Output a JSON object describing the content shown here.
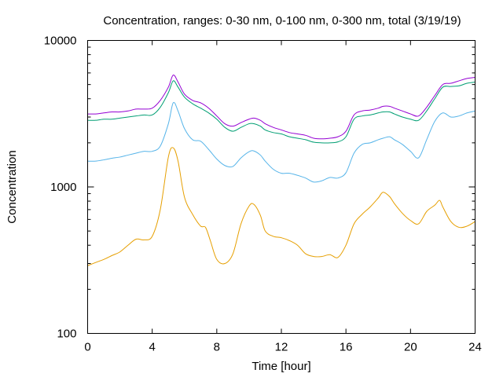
{
  "chart_data": {
    "type": "line",
    "title": "Concentration, ranges: 0-30 nm, 0-100 nm, 0-300 nm, total (3/19/19)",
    "xlabel": "Time [hour]",
    "ylabel": "Concentration",
    "xlim": [
      0,
      24
    ],
    "ylim": [
      100,
      10000
    ],
    "yscale": "log",
    "grid": false,
    "legend": "none",
    "x_ticks": [
      0,
      4,
      8,
      12,
      16,
      20,
      24
    ],
    "y_ticks": [
      100,
      1000,
      10000
    ],
    "y_minor_ticks": [
      200,
      300,
      400,
      500,
      600,
      700,
      800,
      900,
      2000,
      3000,
      4000,
      5000,
      6000,
      7000,
      8000,
      9000
    ],
    "series": [
      {
        "color": "#e69f00",
        "x": [
          0,
          0.5,
          1,
          1.5,
          2,
          2.5,
          3,
          3.5,
          4,
          4.5,
          5,
          5.3,
          5.6,
          6,
          6.5,
          7,
          7.3,
          7.6,
          8,
          8.5,
          9,
          9.5,
          10,
          10.3,
          10.7,
          11,
          11.5,
          12,
          12.5,
          13,
          13.5,
          14,
          14.5,
          15,
          15.5,
          16,
          16.5,
          17,
          17.5,
          18,
          18.3,
          18.7,
          19,
          19.5,
          20,
          20.5,
          21,
          21.5,
          21.8,
          22,
          22.5,
          23,
          23.5,
          24
        ],
        "y": [
          290,
          305,
          320,
          340,
          360,
          400,
          440,
          435,
          460,
          700,
          1600,
          1850,
          1500,
          850,
          650,
          540,
          530,
          430,
          320,
          300,
          350,
          560,
          740,
          760,
          640,
          500,
          460,
          450,
          430,
          400,
          350,
          335,
          335,
          345,
          330,
          400,
          560,
          650,
          730,
          840,
          920,
          860,
          770,
          660,
          590,
          560,
          680,
          750,
          810,
          730,
          580,
          530,
          540,
          580
        ]
      },
      {
        "color": "#56b4e9",
        "x": [
          0,
          0.5,
          1,
          1.5,
          2,
          2.5,
          3,
          3.5,
          4,
          4.5,
          5,
          5.3,
          5.6,
          6,
          6.5,
          7,
          7.5,
          8,
          8.5,
          9,
          9.5,
          10,
          10.3,
          10.7,
          11,
          11.5,
          12,
          12.5,
          13,
          13.5,
          14,
          14.5,
          15,
          15.5,
          16,
          16.5,
          17,
          17.5,
          18,
          18.3,
          18.7,
          19,
          19.5,
          20,
          20.5,
          21,
          21.5,
          22,
          22.5,
          23,
          23.5,
          24
        ],
        "y": [
          1500,
          1500,
          1530,
          1570,
          1600,
          1650,
          1700,
          1750,
          1750,
          1900,
          2700,
          3750,
          3300,
          2500,
          2100,
          2050,
          1800,
          1550,
          1400,
          1380,
          1580,
          1740,
          1760,
          1650,
          1500,
          1320,
          1240,
          1240,
          1200,
          1150,
          1080,
          1100,
          1160,
          1150,
          1250,
          1700,
          1950,
          2000,
          2100,
          2150,
          2200,
          2100,
          1950,
          1750,
          1580,
          2100,
          2800,
          3200,
          3000,
          3050,
          3200,
          3300
        ]
      },
      {
        "color": "#009e73",
        "x": [
          0,
          0.5,
          1,
          1.5,
          2,
          2.5,
          3,
          3.5,
          4,
          4.5,
          5,
          5.3,
          5.6,
          6,
          6.5,
          7,
          7.5,
          8,
          8.5,
          9,
          9.5,
          10,
          10.3,
          10.7,
          11,
          11.5,
          12,
          12.5,
          13,
          13.5,
          14,
          14.5,
          15,
          15.5,
          16,
          16.5,
          17,
          17.5,
          18,
          18.3,
          18.7,
          19,
          19.5,
          20,
          20.5,
          21,
          21.5,
          22,
          22.5,
          23,
          23.5,
          24
        ],
        "y": [
          2850,
          2850,
          2900,
          2900,
          2950,
          3000,
          3050,
          3100,
          3100,
          3500,
          4400,
          5300,
          4800,
          4100,
          3700,
          3450,
          3200,
          2900,
          2550,
          2400,
          2550,
          2700,
          2700,
          2600,
          2450,
          2350,
          2300,
          2200,
          2150,
          2100,
          2020,
          2000,
          2000,
          2030,
          2200,
          2900,
          3050,
          3100,
          3200,
          3250,
          3250,
          3150,
          3000,
          2900,
          2850,
          3300,
          4000,
          4800,
          4850,
          4900,
          5100,
          5200
        ]
      },
      {
        "color": "#9400d3",
        "x": [
          0,
          0.5,
          1,
          1.5,
          2,
          2.5,
          3,
          3.5,
          4,
          4.5,
          5,
          5.3,
          5.6,
          6,
          6.5,
          7,
          7.5,
          8,
          8.5,
          9,
          9.5,
          10,
          10.3,
          10.7,
          11,
          11.5,
          12,
          12.5,
          13,
          13.5,
          14,
          14.5,
          15,
          15.5,
          16,
          16.5,
          17,
          17.5,
          18,
          18.3,
          18.7,
          19,
          19.5,
          20,
          20.5,
          21,
          21.5,
          22,
          22.5,
          23,
          23.5,
          24
        ],
        "y": [
          3150,
          3150,
          3200,
          3250,
          3250,
          3300,
          3400,
          3400,
          3450,
          3900,
          4800,
          5800,
          5200,
          4300,
          3900,
          3750,
          3450,
          3050,
          2700,
          2600,
          2750,
          2900,
          2950,
          2850,
          2700,
          2550,
          2450,
          2350,
          2300,
          2250,
          2150,
          2130,
          2150,
          2200,
          2400,
          3100,
          3300,
          3350,
          3450,
          3550,
          3550,
          3450,
          3300,
          3150,
          3050,
          3500,
          4200,
          5000,
          5100,
          5300,
          5500,
          5600
        ]
      }
    ]
  }
}
